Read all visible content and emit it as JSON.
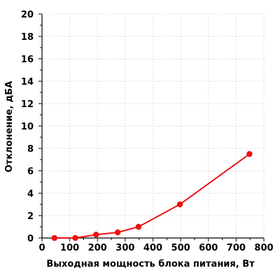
{
  "chart_data": {
    "type": "line",
    "title": "",
    "xlabel": "Выходная мощность блока питания, Вт",
    "ylabel": "Отклонение, дБА",
    "xlim": [
      0,
      800
    ],
    "ylim": [
      0,
      20
    ],
    "x_ticks": [
      0,
      100,
      200,
      300,
      400,
      500,
      600,
      700,
      800
    ],
    "y_ticks": [
      0,
      2,
      4,
      6,
      8,
      10,
      12,
      14,
      16,
      18,
      20
    ],
    "grid": true,
    "legend": "none",
    "series": [
      {
        "color": "#ee1111",
        "marker": "circle",
        "points": [
          {
            "x": 45,
            "y": 0.0
          },
          {
            "x": 120,
            "y": 0.0
          },
          {
            "x": 195,
            "y": 0.3
          },
          {
            "x": 273,
            "y": 0.5
          },
          {
            "x": 348,
            "y": 1.0
          },
          {
            "x": 497,
            "y": 3.0
          },
          {
            "x": 748,
            "y": 7.5
          }
        ]
      }
    ]
  }
}
